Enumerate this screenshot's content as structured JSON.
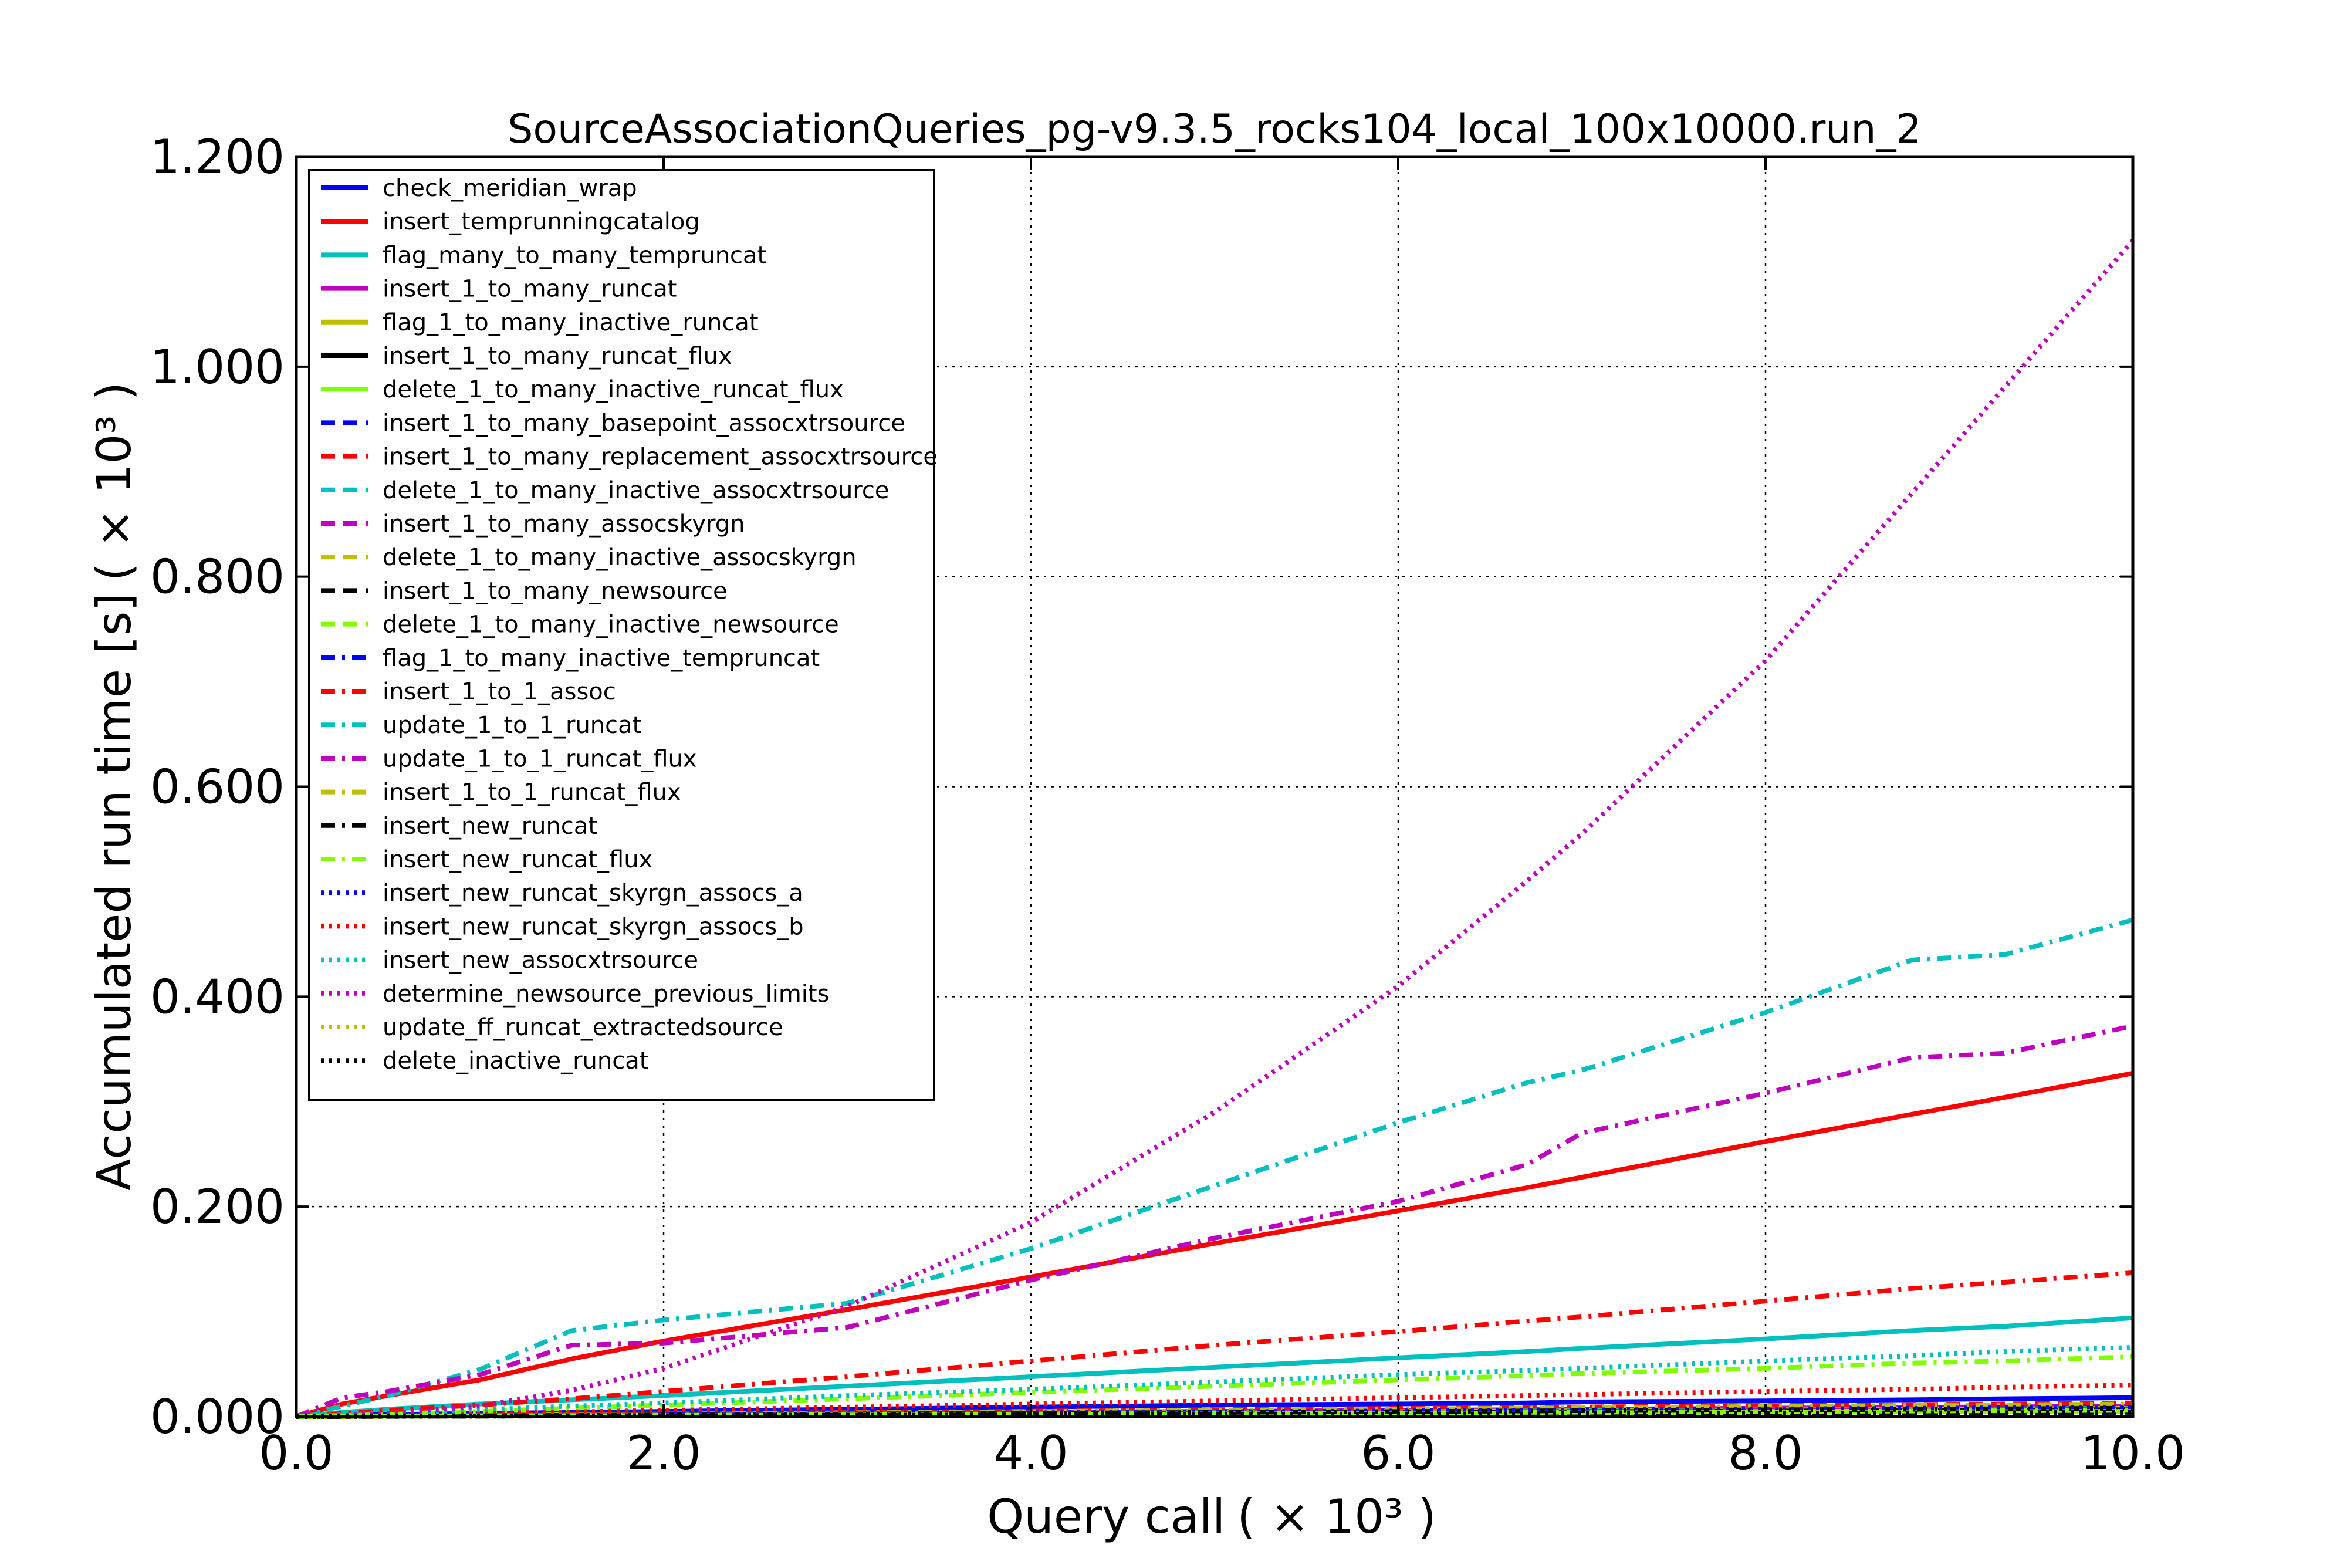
{
  "chart_data": {
    "type": "line",
    "title": "SourceAssociationQueries_pg-v9.3.5_rocks104_local_100x10000.run_2",
    "xlabel": "Query call",
    "xlabel_multiplier": "( × 10³ )",
    "ylabel": "Accumulated run time [s]",
    "ylabel_multiplier": "( × 10³ )",
    "xlim": [
      0,
      10
    ],
    "ylim": [
      0,
      1.2
    ],
    "xticks": [
      "0.0",
      "2.0",
      "4.0",
      "6.0",
      "8.0",
      "10.0"
    ],
    "yticks": [
      "0.000",
      "0.200",
      "0.400",
      "0.600",
      "0.800",
      "1.000",
      "1.200"
    ],
    "grid": true,
    "legend_position": "upper-left",
    "x": [
      0,
      0.25,
      0.5,
      1.0,
      1.5,
      2.0,
      3.0,
      4.0,
      5.0,
      6.0,
      6.7,
      7.0,
      8.0,
      8.8,
      9.3,
      10.0
    ],
    "series": [
      {
        "name": "check_meridian_wrap",
        "color": "#0000ff",
        "dash": "solid",
        "values": [
          0,
          0.001,
          0.002,
          0.003,
          0.004,
          0.005,
          0.007,
          0.009,
          0.011,
          0.012,
          0.013,
          0.014,
          0.015,
          0.016,
          0.017,
          0.018
        ]
      },
      {
        "name": "insert_temprunningcatalog",
        "color": "#ff0000",
        "dash": "solid",
        "values": [
          0,
          0.012,
          0.02,
          0.035,
          0.055,
          0.072,
          0.102,
          0.133,
          0.165,
          0.196,
          0.218,
          0.228,
          0.262,
          0.288,
          0.304,
          0.327
        ]
      },
      {
        "name": "flag_many_to_many_tempruncat",
        "color": "#00bfbf",
        "dash": "solid",
        "values": [
          0,
          0.004,
          0.007,
          0.012,
          0.016,
          0.02,
          0.029,
          0.038,
          0.047,
          0.056,
          0.062,
          0.065,
          0.074,
          0.082,
          0.086,
          0.094
        ]
      },
      {
        "name": "insert_1_to_many_runcat",
        "color": "#bf00bf",
        "dash": "solid",
        "values": [
          0,
          0.0003,
          0.0005,
          0.001,
          0.0015,
          0.002,
          0.003,
          0.004,
          0.005,
          0.006,
          0.0066,
          0.007,
          0.008,
          0.0088,
          0.0093,
          0.01
        ]
      },
      {
        "name": "flag_1_to_many_inactive_runcat",
        "color": "#bfbf00",
        "dash": "solid",
        "values": [
          0,
          0.0002,
          0.0004,
          0.0008,
          0.0012,
          0.0016,
          0.0024,
          0.0032,
          0.004,
          0.0048,
          0.0054,
          0.0056,
          0.0064,
          0.007,
          0.0074,
          0.008
        ]
      },
      {
        "name": "insert_1_to_many_runcat_flux",
        "color": "#000000",
        "dash": "solid",
        "values": [
          0,
          0.0002,
          0.0003,
          0.0006,
          0.001,
          0.0013,
          0.002,
          0.0026,
          0.0033,
          0.004,
          0.0044,
          0.0046,
          0.0053,
          0.0058,
          0.0061,
          0.0066
        ]
      },
      {
        "name": "delete_1_to_many_inactive_runcat_flux",
        "color": "#7fff00",
        "dash": "solid",
        "values": [
          0,
          0.0002,
          0.0003,
          0.0005,
          0.0008,
          0.001,
          0.0015,
          0.002,
          0.0025,
          0.003,
          0.0034,
          0.0035,
          0.004,
          0.0044,
          0.0047,
          0.005
        ]
      },
      {
        "name": "insert_1_to_many_basepoint_assocxtrsource",
        "color": "#0000ff",
        "dash": "dashed",
        "values": [
          0,
          0.0003,
          0.0005,
          0.001,
          0.0015,
          0.002,
          0.003,
          0.004,
          0.005,
          0.006,
          0.0066,
          0.007,
          0.008,
          0.0088,
          0.0093,
          0.01
        ]
      },
      {
        "name": "insert_1_to_many_replacement_assocxtrsource",
        "color": "#ff0000",
        "dash": "dashed",
        "values": [
          0,
          0.0004,
          0.0007,
          0.0013,
          0.002,
          0.0026,
          0.0039,
          0.0052,
          0.0065,
          0.0078,
          0.0087,
          0.0091,
          0.0104,
          0.0114,
          0.0121,
          0.013
        ]
      },
      {
        "name": "delete_1_to_many_inactive_assocxtrsource",
        "color": "#00bfbf",
        "dash": "dashed",
        "values": [
          0,
          0.0002,
          0.0004,
          0.0008,
          0.0012,
          0.0016,
          0.0024,
          0.0032,
          0.004,
          0.0048,
          0.0054,
          0.0056,
          0.0064,
          0.007,
          0.0074,
          0.008
        ]
      },
      {
        "name": "insert_1_to_many_assocskyrgn",
        "color": "#bf00bf",
        "dash": "dashed",
        "values": [
          0,
          0.0002,
          0.0004,
          0.0007,
          0.0011,
          0.0014,
          0.0021,
          0.0028,
          0.0035,
          0.0042,
          0.0047,
          0.0049,
          0.0056,
          0.0062,
          0.0065,
          0.007
        ]
      },
      {
        "name": "delete_1_to_many_inactive_assocskyrgn",
        "color": "#bfbf00",
        "dash": "dashed",
        "values": [
          0,
          0.0001,
          0.0003,
          0.0005,
          0.0008,
          0.001,
          0.0015,
          0.002,
          0.0025,
          0.003,
          0.0034,
          0.0035,
          0.004,
          0.0044,
          0.0047,
          0.005
        ]
      },
      {
        "name": "insert_1_to_many_newsource",
        "color": "#000000",
        "dash": "dashed",
        "values": [
          0,
          0.0001,
          0.0002,
          0.0004,
          0.0006,
          0.0008,
          0.0012,
          0.0016,
          0.002,
          0.0024,
          0.0027,
          0.0028,
          0.0032,
          0.0035,
          0.0037,
          0.004
        ]
      },
      {
        "name": "delete_1_to_many_inactive_newsource",
        "color": "#7fff00",
        "dash": "dashed",
        "values": [
          0,
          0.0002,
          0.0003,
          0.0006,
          0.0009,
          0.0012,
          0.0018,
          0.0024,
          0.003,
          0.0036,
          0.004,
          0.0042,
          0.0048,
          0.0053,
          0.0056,
          0.006
        ]
      },
      {
        "name": "flag_1_to_many_inactive_tempruncat",
        "color": "#0000ff",
        "dash": "dashdot",
        "values": [
          0,
          0.0002,
          0.0004,
          0.0008,
          0.0012,
          0.0016,
          0.0024,
          0.0032,
          0.004,
          0.0048,
          0.0054,
          0.0056,
          0.0064,
          0.007,
          0.0074,
          0.008
        ]
      },
      {
        "name": "insert_1_to_1_assoc",
        "color": "#ff0000",
        "dash": "dashdot",
        "values": [
          0,
          0.003,
          0.006,
          0.011,
          0.017,
          0.024,
          0.038,
          0.053,
          0.068,
          0.081,
          0.091,
          0.095,
          0.11,
          0.122,
          0.128,
          0.137
        ]
      },
      {
        "name": "update_1_to_1_runcat",
        "color": "#00bfbf",
        "dash": "dashdot",
        "values": [
          0,
          0.01,
          0.02,
          0.045,
          0.082,
          0.092,
          0.108,
          0.16,
          0.22,
          0.28,
          0.318,
          0.33,
          0.385,
          0.435,
          0.44,
          0.473
        ]
      },
      {
        "name": "update_1_to_1_runcat_flux",
        "color": "#bf00bf",
        "dash": "dashdot",
        "values": [
          0,
          0.018,
          0.024,
          0.04,
          0.068,
          0.07,
          0.085,
          0.13,
          0.17,
          0.205,
          0.24,
          0.27,
          0.308,
          0.342,
          0.346,
          0.372
        ]
      },
      {
        "name": "insert_1_to_1_runcat_flux",
        "color": "#bfbf00",
        "dash": "dashdot",
        "values": [
          0,
          0.0003,
          0.0006,
          0.0012,
          0.0018,
          0.0024,
          0.0036,
          0.0048,
          0.006,
          0.0072,
          0.008,
          0.0084,
          0.0096,
          0.0106,
          0.0112,
          0.012
        ]
      },
      {
        "name": "insert_new_runcat",
        "color": "#000000",
        "dash": "dashdot",
        "values": [
          0,
          0.0002,
          0.0004,
          0.0008,
          0.0012,
          0.0016,
          0.0024,
          0.0032,
          0.004,
          0.0048,
          0.0054,
          0.0056,
          0.0064,
          0.007,
          0.0074,
          0.008
        ]
      },
      {
        "name": "insert_new_runcat_flux",
        "color": "#7fff00",
        "dash": "dashdot",
        "values": [
          0,
          0.001,
          0.002,
          0.005,
          0.008,
          0.011,
          0.017,
          0.023,
          0.029,
          0.035,
          0.039,
          0.041,
          0.046,
          0.051,
          0.053,
          0.057
        ]
      },
      {
        "name": "insert_new_runcat_skyrgn_assocs_a",
        "color": "#0000ff",
        "dash": "dotted",
        "values": [
          0,
          0.0002,
          0.0004,
          0.0009,
          0.0013,
          0.0018,
          0.0027,
          0.0036,
          0.0045,
          0.0054,
          0.006,
          0.0063,
          0.0072,
          0.0079,
          0.0084,
          0.009
        ]
      },
      {
        "name": "insert_new_runcat_skyrgn_assocs_b",
        "color": "#ff0000",
        "dash": "dotted",
        "values": [
          0,
          0.0007,
          0.0015,
          0.003,
          0.0045,
          0.006,
          0.009,
          0.012,
          0.015,
          0.018,
          0.02,
          0.021,
          0.024,
          0.026,
          0.028,
          0.03
        ]
      },
      {
        "name": "insert_new_assocxtrsource",
        "color": "#00bfbf",
        "dash": "dotted",
        "values": [
          0,
          0.0016,
          0.0033,
          0.0066,
          0.01,
          0.013,
          0.02,
          0.026,
          0.033,
          0.04,
          0.044,
          0.046,
          0.053,
          0.058,
          0.062,
          0.066
        ]
      },
      {
        "name": "determine_newsource_previous_limits",
        "color": "#bf00bf",
        "dash": "dotted",
        "values": [
          0,
          0.001,
          0.003,
          0.01,
          0.025,
          0.046,
          0.105,
          0.185,
          0.29,
          0.41,
          0.51,
          0.555,
          0.72,
          0.88,
          0.98,
          1.12
        ]
      },
      {
        "name": "update_ff_runcat_extractedsource",
        "color": "#bfbf00",
        "dash": "dotted",
        "values": [
          0,
          0.0001,
          0.0003,
          0.0005,
          0.0008,
          0.001,
          0.0015,
          0.002,
          0.0025,
          0.003,
          0.0034,
          0.0035,
          0.004,
          0.0044,
          0.0047,
          0.005
        ]
      },
      {
        "name": "delete_inactive_runcat",
        "color": "#000000",
        "dash": "dotted",
        "values": [
          0,
          0.0001,
          0.0002,
          0.0004,
          0.0006,
          0.0008,
          0.0012,
          0.0016,
          0.002,
          0.0024,
          0.0027,
          0.0028,
          0.0032,
          0.0035,
          0.0037,
          0.004
        ]
      }
    ]
  }
}
